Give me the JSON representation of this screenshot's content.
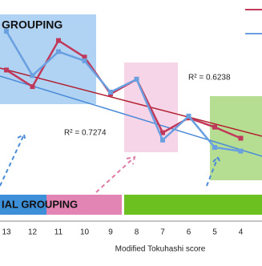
{
  "chart_data": {
    "type": "line",
    "categories": [
      "13",
      "12",
      "11",
      "10",
      "9",
      "8",
      "7",
      "6",
      "5",
      "4"
    ],
    "x_label": "Modified Tokuhashi score",
    "ylim": [
      0,
      100
    ],
    "series": [
      {
        "color": "#c0395a",
        "values": [
          62,
          53,
          78,
          69,
          49,
          57,
          28,
          36,
          31,
          25
        ]
      },
      {
        "color": "#6a9fe0",
        "values": [
          83,
          59,
          72,
          67,
          50,
          57,
          24,
          37,
          20,
          18
        ]
      }
    ],
    "annotations": {
      "r2_red": "R² = 0.6238",
      "r2_blue": "R² = 0.7274"
    },
    "groups": {
      "top_left": "GROUPING",
      "bottom_left": "IAL GROUPING"
    }
  }
}
